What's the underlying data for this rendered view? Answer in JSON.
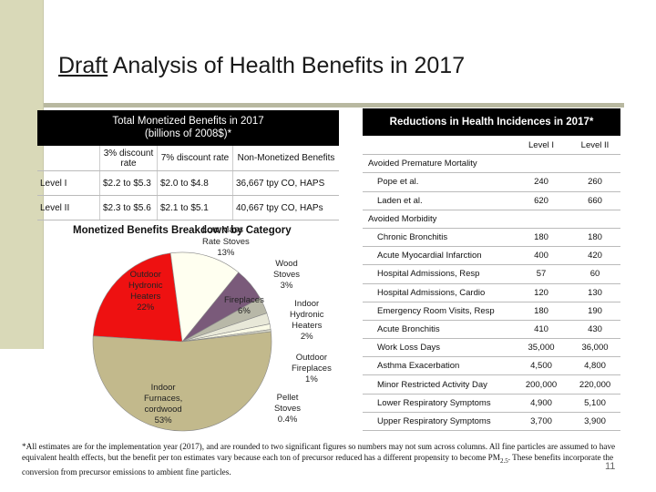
{
  "title": {
    "draft": "Draft",
    "rest": " Analysis of Health Benefits in 2017"
  },
  "left_table": {
    "header_line1": "Total Monetized Benefits in 2017",
    "header_line2": "(billions of 2008$)*",
    "col_3pct": "3% discount rate",
    "col_7pct": "7% discount rate",
    "col_nonmon": "Non-Monetized Benefits",
    "rows": [
      {
        "label": "Level I",
        "r3": "$2.2 to $5.3",
        "r7": "$2.0 to $4.8",
        "non": "36,667 tpy CO, HAPS"
      },
      {
        "label": "Level II",
        "r3": "$2.3 to $5.6",
        "r7": "$2.1 to $5.1",
        "non": "40,667 tpy CO, HAPs"
      }
    ]
  },
  "pie": {
    "title": "Monetized Benefits Breakdown by Category",
    "labels": {
      "outdoor_hydronic": [
        "Outdoor",
        "Hydronic",
        "Heaters",
        "22%"
      ],
      "low_mass": [
        "Low Mass",
        "Rate Stoves",
        "13%"
      ],
      "wood_stoves": [
        "Wood",
        "Stoves",
        "3%"
      ],
      "fireplaces": [
        "Fireplaces",
        "6%"
      ],
      "indoor_hydronic": [
        "Indoor",
        "Hydronic",
        "Heaters",
        "2%"
      ],
      "outdoor_fireplaces": [
        "Outdoor",
        "Fireplaces",
        "1%"
      ],
      "pellet": [
        "Pellet",
        "Stoves",
        "0.4%"
      ],
      "indoor_furnaces": [
        "Indoor",
        "Furnaces,",
        "cordwood",
        "53%"
      ]
    }
  },
  "chart_data": {
    "type": "pie",
    "title": "Monetized Benefits Breakdown by Category",
    "categories": [
      "Indoor Furnaces, cordwood",
      "Outdoor Hydronic Heaters",
      "Low Mass Rate Stoves",
      "Wood Stoves",
      "Fireplaces",
      "Indoor Hydronic Heaters",
      "Outdoor Fireplaces",
      "Pellet Stoves"
    ],
    "values": [
      53,
      22,
      13,
      3,
      6,
      2,
      1,
      0.4
    ],
    "colors": [
      "#c2b98c",
      "#ee1111",
      "#fffff0",
      "#b8b8a8",
      "#7a5a7a",
      "#e8e8d8",
      "#fafae6",
      "#d8d8c8"
    ]
  },
  "right_table": {
    "header": "Reductions in Health Incidences in 2017*",
    "col1": "Level I",
    "col2": "Level II",
    "sections": [
      {
        "title": "Avoided Premature Mortality",
        "rows": [
          {
            "name": "Pope et al.",
            "v1": "240",
            "v2": "260"
          },
          {
            "name": "Laden et al.",
            "v1": "620",
            "v2": "660"
          }
        ]
      },
      {
        "title": "Avoided Morbidity",
        "rows": [
          {
            "name": "Chronic Bronchitis",
            "v1": "180",
            "v2": "180"
          },
          {
            "name": "Acute Myocardial Infarction",
            "v1": "400",
            "v2": "420"
          },
          {
            "name": "Hospital Admissions, Resp",
            "v1": "57",
            "v2": "60"
          },
          {
            "name": "Hospital Admissions, Cardio",
            "v1": "120",
            "v2": "130"
          },
          {
            "name": "Emergency Room Visits, Resp",
            "v1": "180",
            "v2": "190"
          },
          {
            "name": "Acute Bronchitis",
            "v1": "410",
            "v2": "430"
          },
          {
            "name": "Work Loss Days",
            "v1": "35,000",
            "v2": "36,000"
          },
          {
            "name": "Asthma Exacerbation",
            "v1": "4,500",
            "v2": "4,800"
          },
          {
            "name": "Minor Restricted Activity Day",
            "v1": "200,000",
            "v2": "220,000"
          },
          {
            "name": "Lower Respiratory Symptoms",
            "v1": "4,900",
            "v2": "5,100"
          },
          {
            "name": "Upper Respiratory Symptoms",
            "v1": "3,700",
            "v2": "3,900"
          }
        ]
      }
    ]
  },
  "footnote": "*All estimates are for the implementation year (2017), and are rounded to two significant figures so numbers may not sum across columns. All fine particles are assumed to have equivalent health effects, but the benefit per ton estimates vary because each ton of precursor reduced has a different propensity to become PM",
  "footnote_sub": "2.5",
  "footnote_end": ". These benefits incorporate the conversion from precursor emissions to ambient fine particles.",
  "page_number": "11"
}
